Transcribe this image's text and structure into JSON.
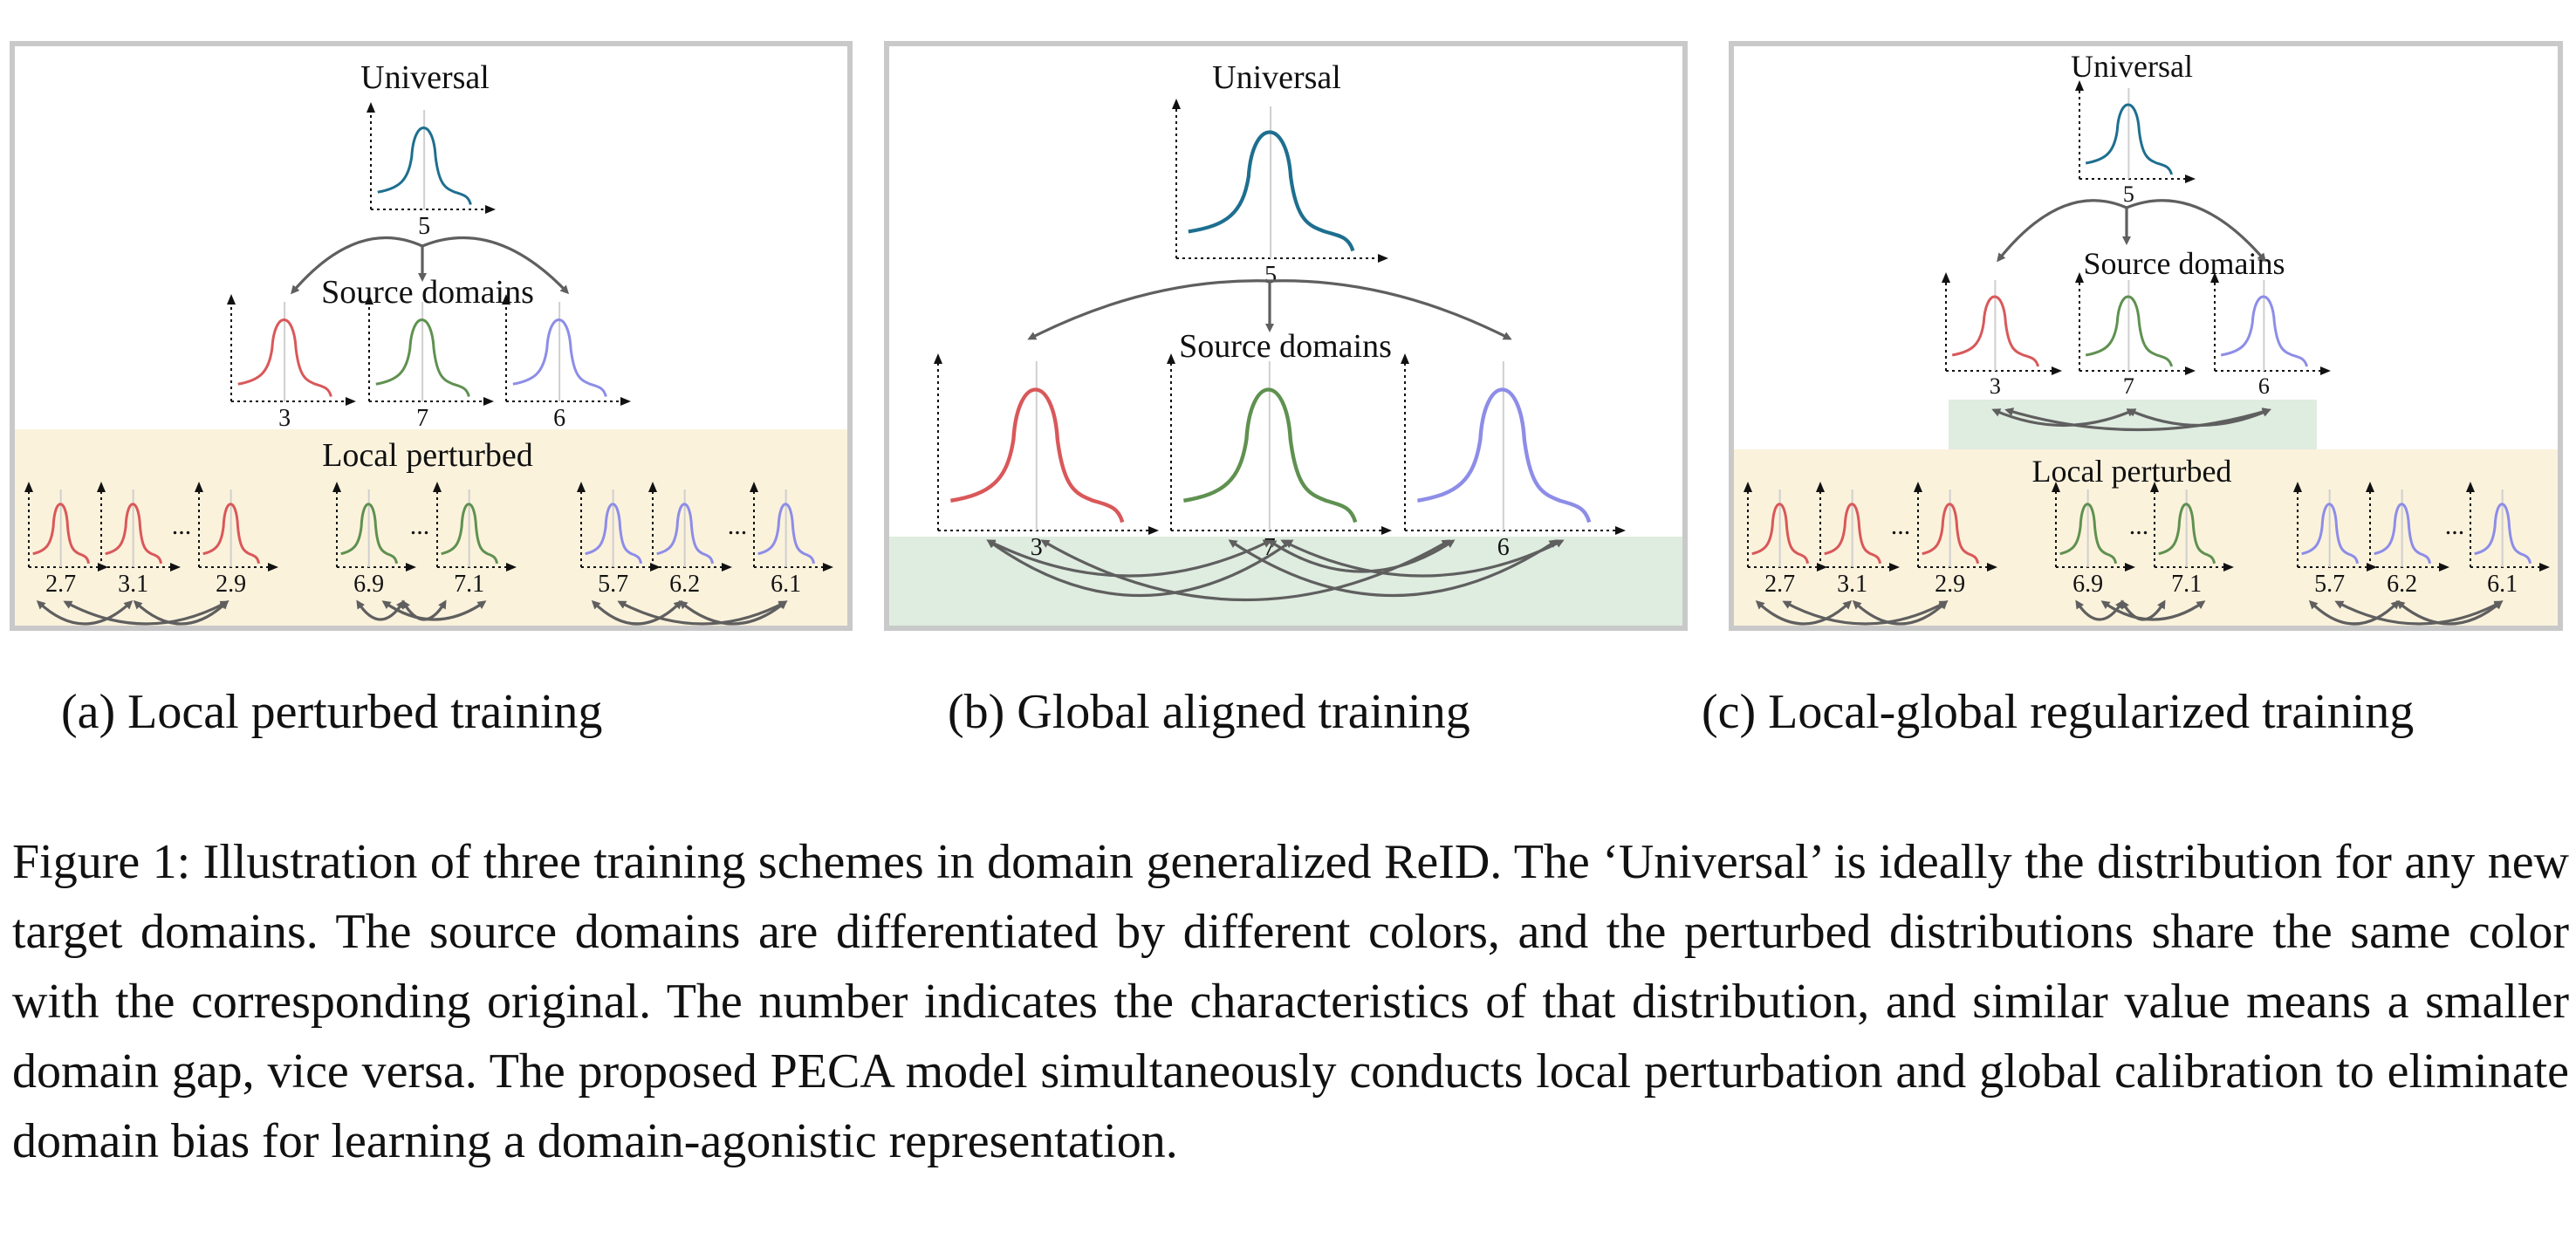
{
  "colors": {
    "universal": "#1e6f8f",
    "domain_red": "#d9585a",
    "domain_green": "#5f9150",
    "domain_blue": "#8d8de8",
    "band_yellow": "#fbf2dc",
    "band_green": "#dfece0",
    "arrow": "#5f5f5f"
  },
  "labels": {
    "universal": "Universal",
    "source_domains": "Source domains",
    "local_perturbed": "Local perturbed",
    "ellipsis": "..."
  },
  "values": {
    "universal": "5",
    "source": [
      "3",
      "7",
      "6"
    ],
    "perturbed_red": [
      "2.7",
      "3.1",
      "2.9"
    ],
    "perturbed_green": [
      "6.9",
      "7.1"
    ],
    "perturbed_blue": [
      "5.7",
      "6.2",
      "6.1"
    ]
  },
  "panels": {
    "a": "(a) Local perturbed training",
    "b": "(b) Global aligned training",
    "c": "(c) Local-global regularized training"
  },
  "caption": "Figure 1: Illustration of three training schemes in domain generalized ReID. The ‘Universal’ is ideally the distribution for any new target domains. The source domains are differentiated by different colors, and the perturbed distributions share the same color with the corresponding original. The number indicates the characteristics of that distribution, and similar value means a smaller domain gap, vice versa. The proposed PECA model simultaneously conducts local perturbation and global calibration to eliminate domain bias for learning a domain-agonistic representation."
}
